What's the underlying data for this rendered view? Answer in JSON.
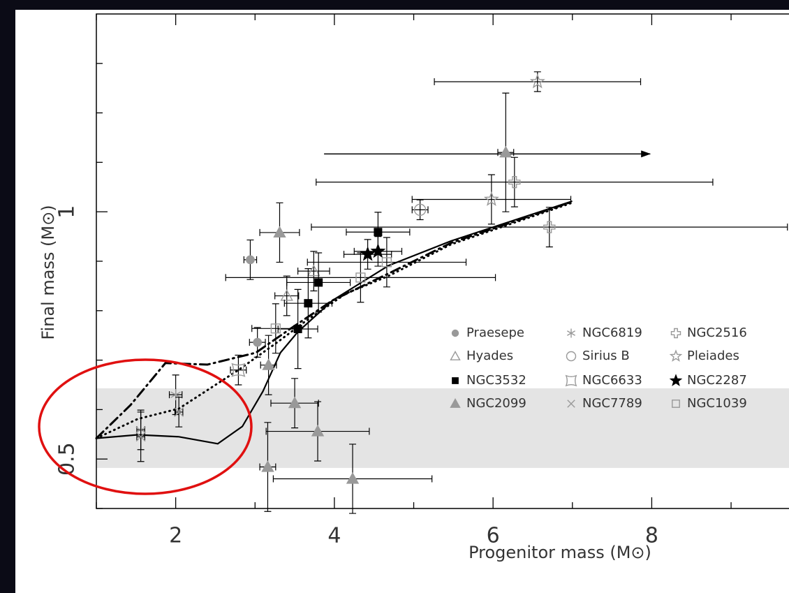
{
  "chart_data": {
    "type": "scatter",
    "x_label": "Progenitor mass (M⊙)",
    "y_label": "Final mass (M⊙)",
    "xlim": [
      1,
      9.73
    ],
    "ylim": [
      0.4,
      1.4
    ],
    "xticks": [
      2,
      4,
      6,
      8
    ],
    "yticks": [
      0.5,
      1
    ],
    "xticks_minor": [
      1,
      3,
      5,
      7,
      9
    ],
    "yticks_minor": [
      0.4,
      0.6,
      0.7,
      0.8,
      0.9,
      1.1,
      1.2,
      1.3
    ],
    "band": [
      0.482,
      0.643
    ],
    "band_color": "#e4e4e4",
    "arrow": {
      "x": [
        3.87,
        7.98
      ],
      "y": 1.117
    },
    "series": [
      {
        "name": "Praesepe",
        "color": "#999999",
        "marker": "circle-filled",
        "x": [
          2.94,
          3.03
        ],
        "y": [
          0.903,
          0.736
        ],
        "xerr": [
          0.08,
          0.1
        ],
        "yerr": [
          0.04,
          0.03
        ]
      },
      {
        "name": "Hyades",
        "color": "#999999",
        "marker": "triangle-open",
        "x": [
          3.74,
          3.4
        ],
        "y": [
          0.88,
          0.83
        ],
        "xerr": [
          0.2,
          0.15
        ],
        "yerr": [
          0.04,
          0.04
        ]
      },
      {
        "name": "NGC3532",
        "color": "#000000",
        "marker": "square-filled",
        "x": [
          4.55,
          3.8,
          3.67,
          3.54
        ],
        "y": [
          0.959,
          0.857,
          0.815,
          0.763
        ],
        "xerr": [
          0.4,
          0.4,
          0.3,
          0.25
        ],
        "yerr": [
          0.04,
          0.06,
          0.07,
          0.08
        ]
      },
      {
        "name": "NGC2099",
        "color": "#999999",
        "marker": "triangle-filled",
        "x": [
          3.31,
          6.16,
          3.5,
          3.79,
          3.16,
          4.23,
          3.17
        ],
        "y": [
          0.958,
          1.12,
          0.613,
          0.556,
          0.484,
          0.46,
          0.69
        ],
        "xerr": [
          0.25,
          0.1,
          0.3,
          0.65,
          0.1,
          1.0,
          0.1
        ],
        "yerr": [
          0.06,
          0.12,
          0.05,
          0.06,
          0.09,
          0.07,
          0.06
        ]
      },
      {
        "name": "NGC6819",
        "color": "#999999",
        "marker": "asterisk",
        "x": [
          1.56,
          2.0
        ],
        "y": [
          0.559,
          0.63
        ],
        "xerr": [
          0.05,
          0.08
        ],
        "yerr": [
          0.04,
          0.04
        ]
      },
      {
        "name": "Sirius B",
        "color": "#999999",
        "marker": "circle-open",
        "x": [
          5.08
        ],
        "y": [
          1.004
        ],
        "xerr": [
          0.1
        ],
        "yerr": [
          0.02
        ]
      },
      {
        "name": "NGC6633",
        "color": "#999999",
        "marker": "concave",
        "x": [
          2.79
        ],
        "y": [
          0.68
        ],
        "xerr": [
          0.1
        ],
        "yerr": [
          0.03
        ]
      },
      {
        "name": "NGC7789",
        "color": "#999999",
        "marker": "cross-x",
        "x": [
          2.04,
          1.56
        ],
        "y": [
          0.595,
          0.545
        ],
        "xerr": [
          0.05,
          0.05
        ],
        "yerr": [
          0.03,
          0.05
        ]
      },
      {
        "name": "NGC2516",
        "color": "#999999",
        "marker": "cross-open",
        "x": [
          6.27,
          6.71
        ],
        "y": [
          1.06,
          0.969
        ],
        "xerr": [
          2.5,
          3.0
        ],
        "yerr": [
          0.05,
          0.04
        ]
      },
      {
        "name": "Pleiades",
        "color": "#999999",
        "marker": "star-open",
        "x": [
          6.56,
          5.98
        ],
        "y": [
          1.263,
          1.025
        ],
        "xerr": [
          1.3,
          1.0
        ],
        "yerr": [
          0.02,
          0.05
        ]
      },
      {
        "name": "NGC2287",
        "color": "#000000",
        "marker": "star-filled",
        "x": [
          4.42,
          4.55
        ],
        "y": [
          0.914,
          0.92
        ],
        "xerr": [
          0.3,
          0.3
        ],
        "yerr": [
          0.03,
          0.03
        ]
      },
      {
        "name": "NGC1039",
        "color": "#999999",
        "marker": "square-open",
        "x": [
          4.66,
          4.33,
          3.26
        ],
        "y": [
          0.898,
          0.867,
          0.764
        ],
        "xerr": [
          1.0,
          1.7,
          0.3
        ],
        "yerr": [
          0.05,
          0.05,
          0.05
        ]
      }
    ],
    "curves": [
      {
        "style": "solid",
        "color": "#000000",
        "x": [
          1.0,
          1.52,
          2.04,
          2.53,
          2.84,
          3.1,
          3.32,
          3.54,
          3.98,
          4.68,
          5.47,
          6.27,
          6.99
        ],
        "y": [
          0.542,
          0.549,
          0.545,
          0.531,
          0.566,
          0.637,
          0.715,
          0.757,
          0.821,
          0.891,
          0.941,
          0.983,
          1.021
        ]
      },
      {
        "style": "dotted",
        "color": "#000000",
        "x": [
          1.0,
          1.52,
          2.04,
          2.79,
          3.28,
          3.63,
          4.15,
          4.68,
          5.47,
          6.99
        ],
        "y": [
          0.542,
          0.581,
          0.602,
          0.68,
          0.736,
          0.778,
          0.835,
          0.87,
          0.934,
          1.018
        ]
      },
      {
        "style": "dashdot",
        "color": "#000000",
        "x": [
          1.0,
          1.43,
          1.87,
          2.4,
          3.01,
          3.45,
          3.98,
          4.68,
          5.47,
          6.99
        ],
        "y": [
          0.542,
          0.609,
          0.694,
          0.691,
          0.715,
          0.764,
          0.821,
          0.875,
          0.937,
          1.02
        ]
      }
    ]
  }
}
